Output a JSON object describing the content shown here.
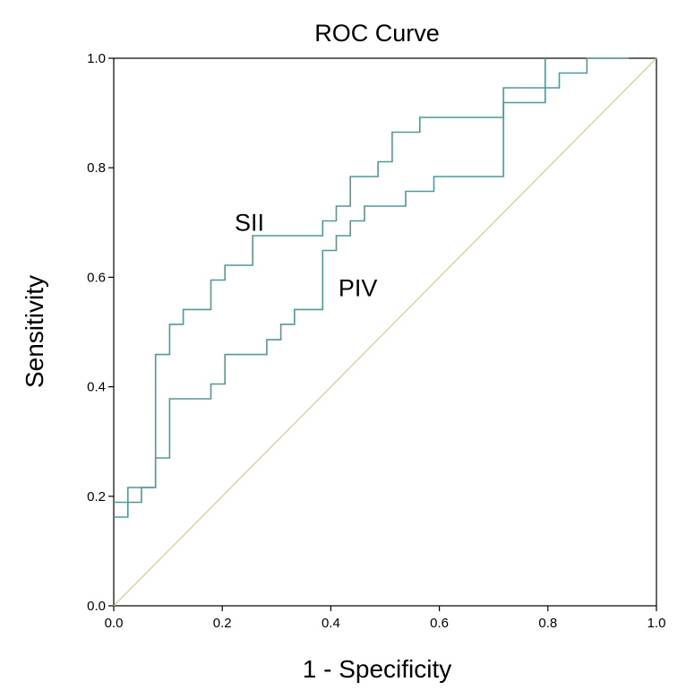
{
  "chart_data": {
    "type": "line",
    "title": "ROC Curve",
    "xlabel": "1 - Specificity",
    "ylabel": "Sensitivity",
    "xlim": [
      0.0,
      1.0
    ],
    "ylim": [
      0.0,
      1.0
    ],
    "x_ticks": [
      "0.0",
      "0.2",
      "0.4",
      "0.6",
      "0.8",
      "1.0"
    ],
    "y_ticks": [
      "0.0",
      "0.2",
      "0.4",
      "0.6",
      "0.8",
      "1.0"
    ],
    "grid": false,
    "annotations": [
      {
        "text": "SII",
        "series": "SII",
        "x": 0.25,
        "y": 0.7
      },
      {
        "text": "PIV",
        "series": "PIV",
        "x": 0.45,
        "y": 0.58
      }
    ],
    "colors": {
      "series": "#4d9a9a",
      "reference": "#d8cf94"
    },
    "series": [
      {
        "name": "SII",
        "x": [
          0,
          0.026,
          0.026,
          0.077,
          0.077,
          0.103,
          0.103,
          0.128,
          0.128,
          0.179,
          0.179,
          0.205,
          0.205,
          0.256,
          0.256,
          0.385,
          0.385,
          0.41,
          0.41,
          0.436,
          0.436,
          0.487,
          0.487,
          0.513,
          0.513,
          0.564,
          0.564,
          0.718,
          0.718,
          0.795,
          0.795
        ],
        "y": [
          0.189,
          0.189,
          0.216,
          0.216,
          0.459,
          0.459,
          0.514,
          0.514,
          0.541,
          0.541,
          0.595,
          0.595,
          0.622,
          0.622,
          0.676,
          0.676,
          0.703,
          0.703,
          0.73,
          0.73,
          0.784,
          0.784,
          0.811,
          0.811,
          0.865,
          0.865,
          0.892,
          0.892,
          0.919,
          0.919,
          1.0
        ]
      },
      {
        "name": "PIV",
        "x": [
          0,
          0.026,
          0.026,
          0.051,
          0.051,
          0.077,
          0.077,
          0.103,
          0.103,
          0.179,
          0.179,
          0.205,
          0.205,
          0.282,
          0.282,
          0.308,
          0.308,
          0.333,
          0.333,
          0.385,
          0.385,
          0.41,
          0.41,
          0.436,
          0.436,
          0.462,
          0.462,
          0.538,
          0.538,
          0.59,
          0.59,
          0.718,
          0.718,
          0.821,
          0.821,
          0.872,
          0.872,
          0.949,
          0.949
        ],
        "y": [
          0.162,
          0.162,
          0.189,
          0.189,
          0.216,
          0.216,
          0.27,
          0.27,
          0.378,
          0.378,
          0.405,
          0.405,
          0.459,
          0.459,
          0.486,
          0.486,
          0.514,
          0.514,
          0.541,
          0.541,
          0.649,
          0.649,
          0.676,
          0.676,
          0.703,
          0.703,
          0.73,
          0.73,
          0.757,
          0.757,
          0.784,
          0.784,
          0.946,
          0.946,
          0.973,
          0.973,
          1.0,
          1.0,
          1.0
        ]
      },
      {
        "name": "Reference Line",
        "x": [
          0,
          1
        ],
        "y": [
          0,
          1
        ]
      }
    ]
  }
}
